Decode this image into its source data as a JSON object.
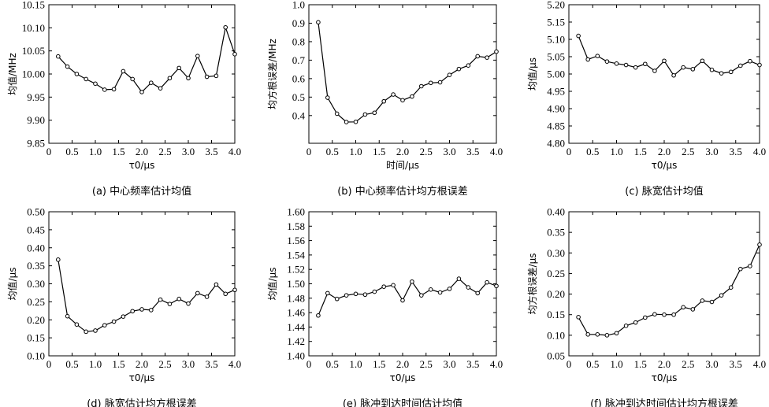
{
  "chart_data": [
    {
      "type": "line",
      "caption": "(a) 中心频率估计均值",
      "xlabel": "τ0/μs",
      "ylabel": "均值/MHz",
      "xlim": [
        0,
        4
      ],
      "ylim": [
        9.85,
        10.15
      ],
      "xticks": [
        "0",
        "0.5",
        "1.0",
        "1.5",
        "2.0",
        "2.5",
        "3.0",
        "3.5",
        "4.0"
      ],
      "yticks": [
        "9.85",
        "9.90",
        "9.95",
        "10.00",
        "10.05",
        "10.10",
        "10.15"
      ],
      "x": [
        0.2,
        0.4,
        0.6,
        0.8,
        1.0,
        1.2,
        1.4,
        1.6,
        1.8,
        2.0,
        2.2,
        2.4,
        2.6,
        2.8,
        3.0,
        3.2,
        3.4,
        3.6,
        3.8,
        4.0
      ],
      "values": [
        10.038,
        10.016,
        10.0,
        9.989,
        9.979,
        9.966,
        9.967,
        10.006,
        9.989,
        9.961,
        9.981,
        9.969,
        9.991,
        10.013,
        9.991,
        10.039,
        9.994,
        9.996,
        10.101,
        10.043
      ]
    },
    {
      "type": "line",
      "caption": "(b) 中心频率估计均方根误差",
      "xlabel": "时间/μs",
      "ylabel": "均方根误差/MHz",
      "xlim": [
        0,
        4
      ],
      "ylim": [
        0.25,
        1.0
      ],
      "xticks": [
        "0",
        "0.5",
        "1.0",
        "1.5",
        "2.0",
        "2.5",
        "3.0",
        "3.5",
        "4.0"
      ],
      "yticks": [
        "0.4",
        "0.5",
        "0.6",
        "0.7",
        "0.8",
        "0.9",
        "1.0"
      ],
      "yticksStart": 0.4,
      "x": [
        0.2,
        0.4,
        0.6,
        0.8,
        1.0,
        1.2,
        1.4,
        1.6,
        1.8,
        2.0,
        2.2,
        2.4,
        2.6,
        2.8,
        3.0,
        3.2,
        3.4,
        3.6,
        3.8,
        4.0
      ],
      "values": [
        0.905,
        0.497,
        0.41,
        0.365,
        0.366,
        0.406,
        0.415,
        0.477,
        0.514,
        0.483,
        0.503,
        0.559,
        0.577,
        0.58,
        0.62,
        0.652,
        0.671,
        0.721,
        0.714,
        0.746
      ]
    },
    {
      "type": "line",
      "caption": "(c) 脉宽估计均值",
      "xlabel": "τ0/μs",
      "ylabel": "均值/μs",
      "xlim": [
        0,
        4
      ],
      "ylim": [
        4.8,
        5.2
      ],
      "xticks": [
        "0",
        "0.5",
        "1.0",
        "1.5",
        "2.0",
        "2.5",
        "3.0",
        "3.5",
        "4.0"
      ],
      "yticks": [
        "4.80",
        "4.85",
        "4.90",
        "4.95",
        "5.00",
        "5.05",
        "5.10",
        "5.15",
        "5.20"
      ],
      "x": [
        0.2,
        0.4,
        0.6,
        0.8,
        1.0,
        1.2,
        1.4,
        1.6,
        1.8,
        2.0,
        2.2,
        2.4,
        2.6,
        2.8,
        3.0,
        3.2,
        3.4,
        3.6,
        3.8,
        4.0
      ],
      "values": [
        5.11,
        5.042,
        5.052,
        5.036,
        5.03,
        5.026,
        5.019,
        5.029,
        5.009,
        5.038,
        4.996,
        5.019,
        5.014,
        5.038,
        5.012,
        5.002,
        5.006,
        5.024,
        5.037,
        5.026
      ]
    },
    {
      "type": "line",
      "caption": "(d) 脉宽估计均方根误差",
      "xlabel": "τ0/μs",
      "ylabel": "均值/μs",
      "xlim": [
        0,
        4
      ],
      "ylim": [
        0.1,
        0.5
      ],
      "xticks": [
        "0",
        "0.5",
        "1.0",
        "1.5",
        "2.0",
        "2.5",
        "3.0",
        "3.5",
        "4.0"
      ],
      "yticks": [
        "0.10",
        "0.15",
        "0.20",
        "0.25",
        "0.30",
        "0.35",
        "0.40",
        "0.45",
        "0.50"
      ],
      "x": [
        0.2,
        0.4,
        0.6,
        0.8,
        1.0,
        1.2,
        1.4,
        1.6,
        1.8,
        2.0,
        2.2,
        2.4,
        2.6,
        2.8,
        3.0,
        3.2,
        3.4,
        3.6,
        3.8,
        4.0
      ],
      "values": [
        0.367,
        0.21,
        0.187,
        0.167,
        0.17,
        0.185,
        0.195,
        0.209,
        0.224,
        0.229,
        0.227,
        0.256,
        0.244,
        0.258,
        0.245,
        0.274,
        0.264,
        0.298,
        0.272,
        0.283
      ]
    },
    {
      "type": "line",
      "caption": "(e) 脉冲到达时间估计均值",
      "xlabel": "τ0/μs",
      "ylabel": "均值/μs",
      "xlim": [
        0,
        4
      ],
      "ylim": [
        1.4,
        1.6
      ],
      "xticks": [
        "0",
        "0.5",
        "1.0",
        "1.5",
        "2.0",
        "2.5",
        "3.0",
        "3.5",
        "4.0"
      ],
      "yticks": [
        "1.40",
        "1.42",
        "1.44",
        "1.46",
        "1.48",
        "1.50",
        "1.52",
        "1.54",
        "1.56",
        "1.58",
        "1.60"
      ],
      "x": [
        0.2,
        0.4,
        0.6,
        0.8,
        1.0,
        1.2,
        1.4,
        1.6,
        1.8,
        2.0,
        2.2,
        2.4,
        2.6,
        2.8,
        3.0,
        3.2,
        3.4,
        3.6,
        3.8,
        4.0
      ],
      "values": [
        1.456,
        1.487,
        1.479,
        1.484,
        1.486,
        1.485,
        1.489,
        1.496,
        1.498,
        1.477,
        1.503,
        1.484,
        1.492,
        1.488,
        1.493,
        1.507,
        1.495,
        1.487,
        1.502,
        1.497
      ]
    },
    {
      "type": "line",
      "caption": "(f) 脉冲到达时间估计均方根误差",
      "xlabel": "τ0/μs",
      "ylabel": "均方根误差/μs",
      "xlim": [
        0,
        4
      ],
      "ylim": [
        0.05,
        0.4
      ],
      "xticks": [
        "0",
        "0.5",
        "1.0",
        "1.5",
        "2.0",
        "2.5",
        "3.0",
        "3.5",
        "4.0"
      ],
      "yticks": [
        "0.05",
        "0.10",
        "0.15",
        "0.20",
        "0.25",
        "0.30",
        "0.35",
        "0.40"
      ],
      "x": [
        0.2,
        0.4,
        0.6,
        0.8,
        1.0,
        1.2,
        1.4,
        1.6,
        1.8,
        2.0,
        2.2,
        2.4,
        2.6,
        2.8,
        3.0,
        3.2,
        3.4,
        3.6,
        3.8,
        4.0
      ],
      "values": [
        0.144,
        0.102,
        0.102,
        0.1,
        0.105,
        0.123,
        0.131,
        0.143,
        0.151,
        0.15,
        0.15,
        0.168,
        0.163,
        0.184,
        0.181,
        0.197,
        0.216,
        0.261,
        0.268,
        0.32
      ]
    }
  ]
}
